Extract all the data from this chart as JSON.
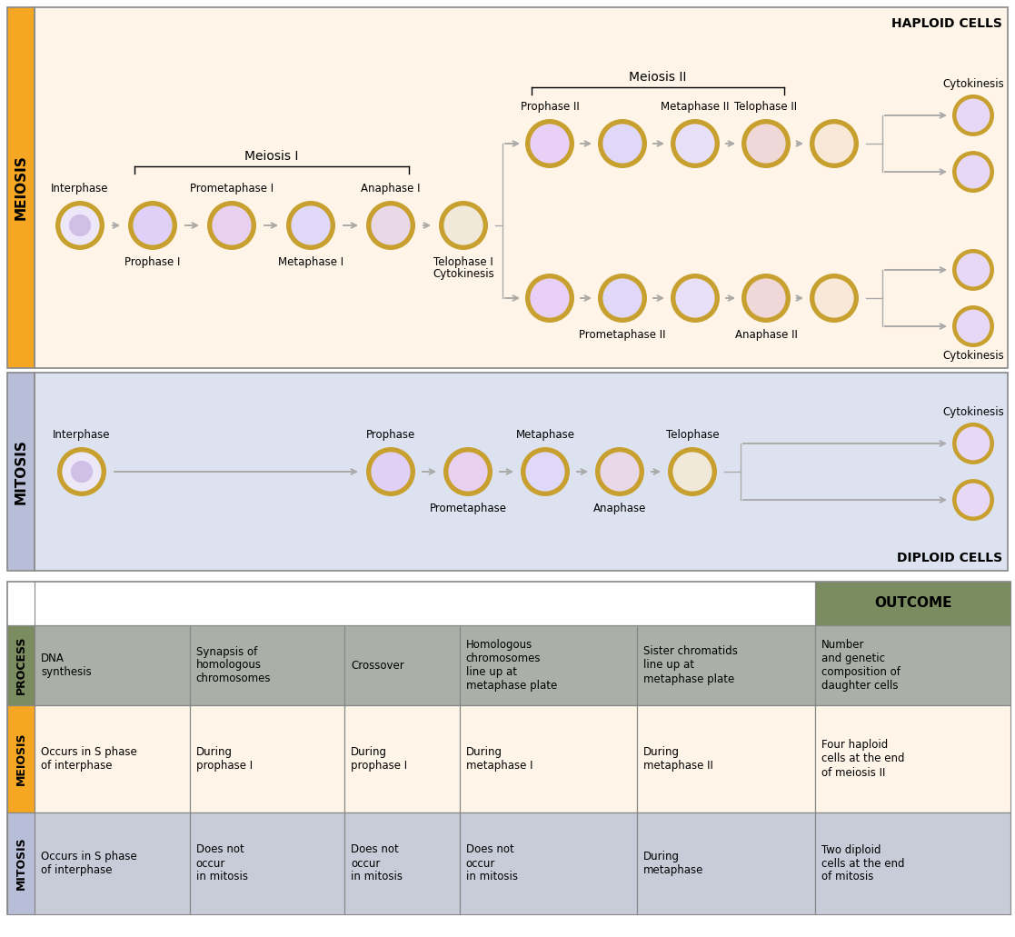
{
  "bg_color_meiosis": "#fef5e8",
  "bg_color_mitosis": "#dde2f0",
  "sidebar_color_meiosis": "#f5a623",
  "sidebar_color_mitosis": "#b8bdd8",
  "haploid_label": "HAPLOID CELLS",
  "diploid_label": "DIPLOID CELLS",
  "meiosis_I_label": "Meiosis I",
  "meiosis_II_label": "Meiosis II",
  "table_header_bg": "#7a8c60",
  "table_process_bg": "#aab0a8",
  "table_meiosis_bg": "#fef5e8",
  "table_mitosis_bg": "#c8ccd8",
  "table_sidebar_process": "#7a8c60",
  "table_sidebar_meiosis": "#f5a623",
  "table_sidebar_mitosis": "#b8bdd8",
  "outcome_header": "OUTCOME",
  "process_label": "PROCESS",
  "table_col_headers": [
    "DNA\nsynthesis",
    "Synapsis of\nhomologous\nchromosomes",
    "Crossover",
    "Homologous\nchromosomes\nline up at\nmetaphase plate",
    "Sister chromatids\nline up at\nmetaphase plate",
    "Number\nand genetic\ncomposition of\ndaughter cells"
  ],
  "meiosis_row": [
    "Occurs in S phase\nof interphase",
    "During\nprophase I",
    "During\nprophase I",
    "During\nmetaphase I",
    "During\nmetaphase II",
    "Four haploid\ncells at the end\nof meiosis II"
  ],
  "mitosis_row": [
    "Occurs in S phase\nof interphase",
    "Does not\noccur\nin mitosis",
    "Does not\noccur\nin mitosis",
    "Does not\noccur\nin mitosis",
    "During\nmetaphase",
    "Two diploid\ncells at the end\nof mitosis"
  ],
  "cell_outer": "#c8a030",
  "cell_outer2": "#d4aa38",
  "arrow_color": "#aaaaaa",
  "border_color": "#888888"
}
